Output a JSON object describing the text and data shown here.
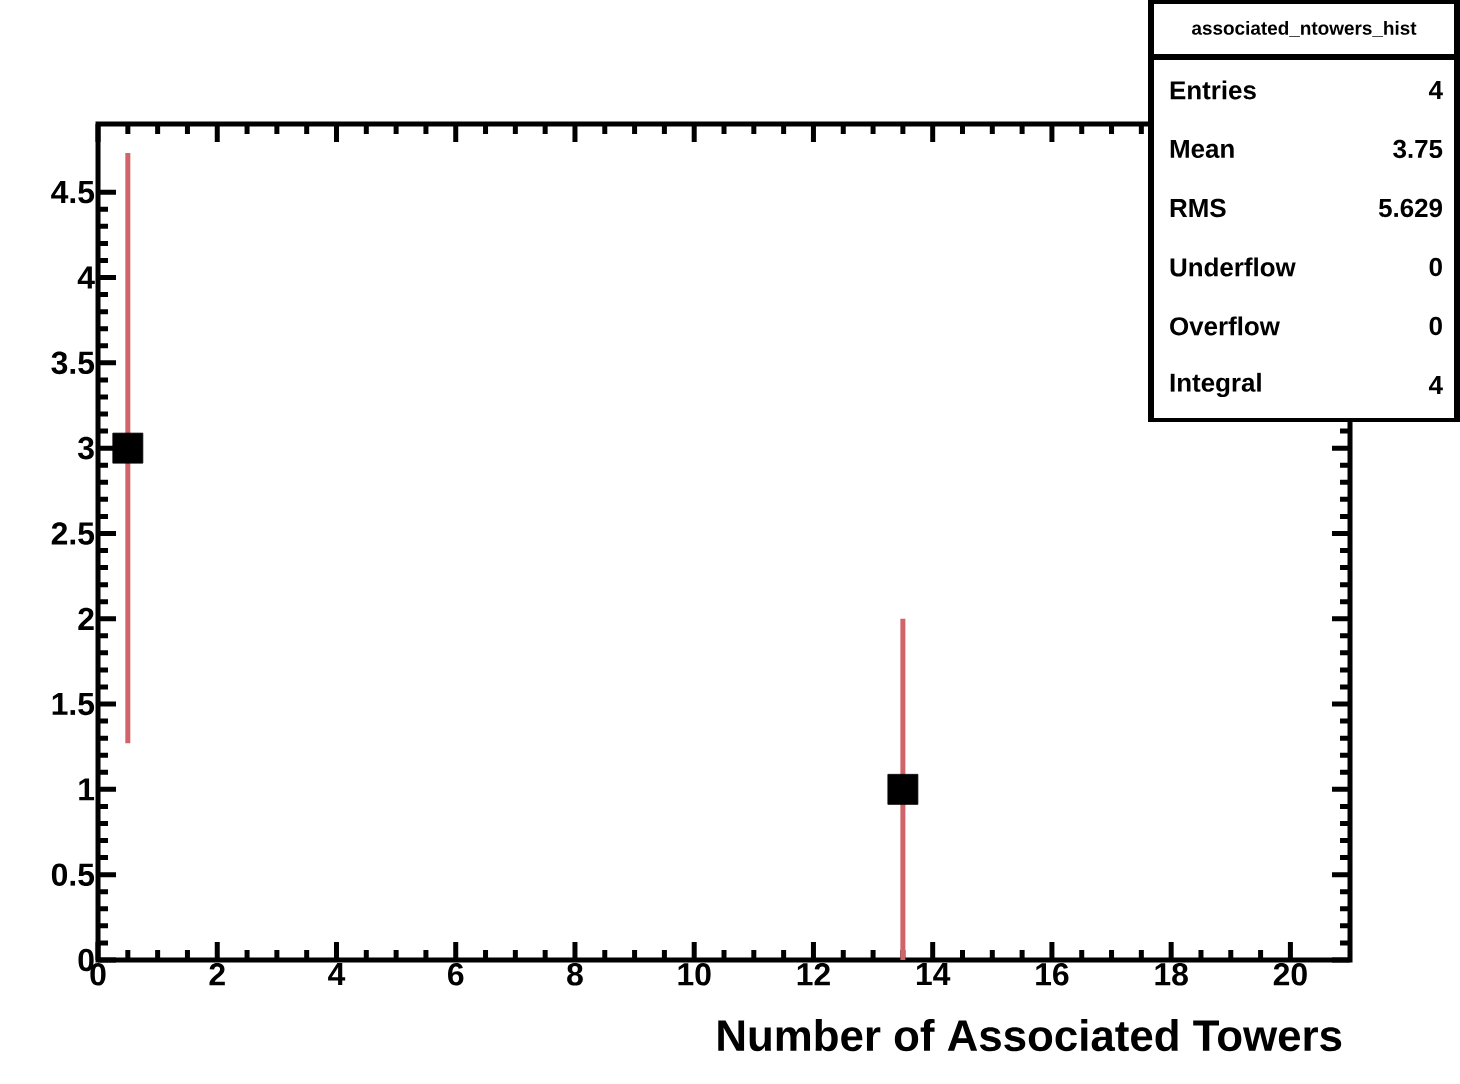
{
  "chart_data": {
    "type": "scatter",
    "xlabel": "Number of Associated Towers",
    "x": [
      0.5,
      13.5
    ],
    "values": [
      3,
      1
    ],
    "errors": [
      1.73,
      1
    ],
    "color": "#000000",
    "marker": "square",
    "xlim": [
      0,
      21
    ],
    "ylim": [
      0,
      4.9
    ],
    "xticks": [
      0,
      2,
      4,
      6,
      8,
      10,
      12,
      14,
      16,
      18,
      20
    ],
    "yticks": [
      0,
      0.5,
      1,
      1.5,
      2,
      2.5,
      3,
      3.5,
      4,
      4.5
    ],
    "grid": false,
    "annotations": [
      "associated_ntowers_hist",
      "Entries",
      "4",
      "Mean",
      "3.75",
      "RMS",
      "5.629",
      "Underflow",
      "0",
      "Overflow",
      "0",
      "Integral",
      "4"
    ]
  }
}
